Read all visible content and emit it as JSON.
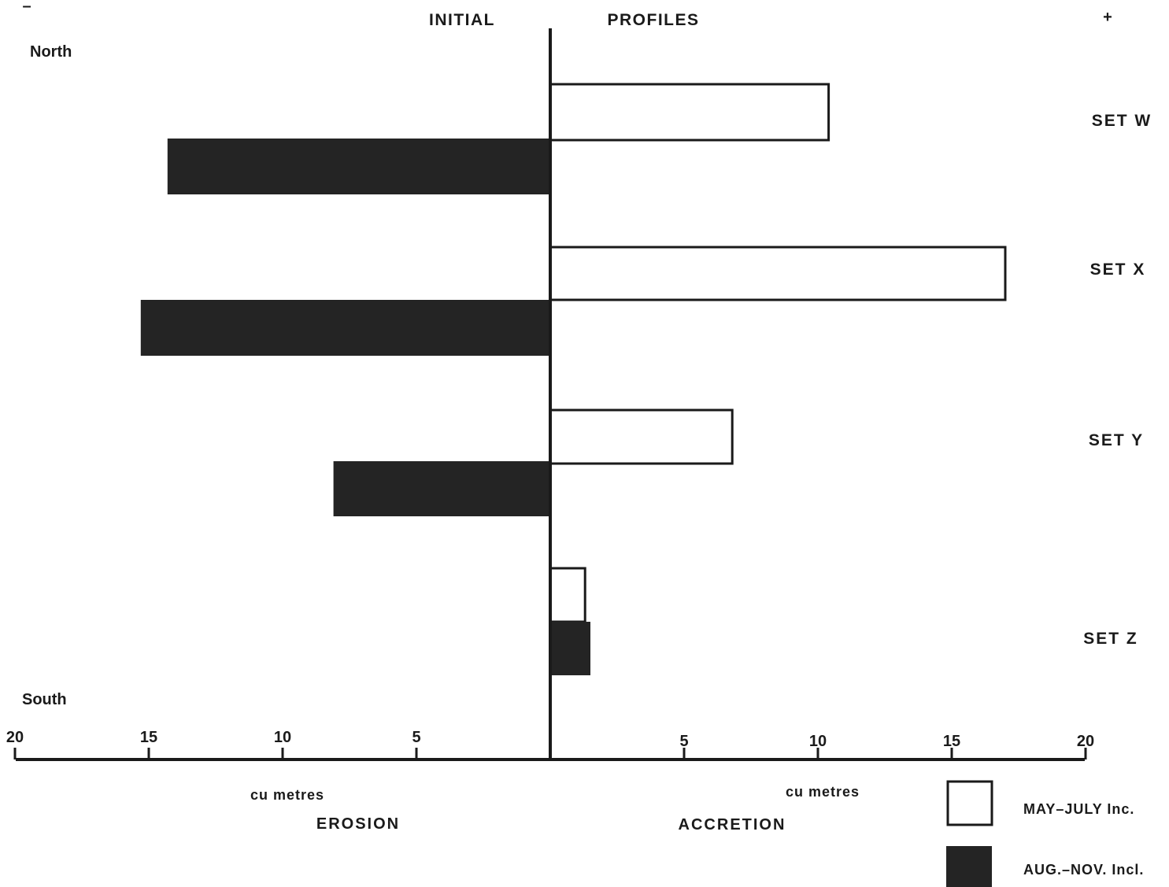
{
  "chart_data": {
    "type": "bar",
    "orientation": "horizontal",
    "sign_minus": "–",
    "sign_plus": "+",
    "top_left_label": "INITIAL",
    "top_right_label": "PROFILES",
    "north_label": "North",
    "south_label": "South",
    "categories": [
      "SET W",
      "SET X",
      "SET Y",
      "SET Z"
    ],
    "series": [
      {
        "name": "MAY–JULY Inc.",
        "fill": "#ffffff",
        "values": [
          10.4,
          17.0,
          6.8,
          1.3
        ]
      },
      {
        "name": "AUG.–NOV. Incl.",
        "fill": "#242424",
        "values": [
          -14.3,
          -15.3,
          -8.1,
          1.5
        ]
      }
    ],
    "xlim": [
      -20,
      20
    ],
    "x_ticks": [
      -20,
      -15,
      -10,
      -5,
      5,
      10,
      15,
      20
    ],
    "x_tick_labels": [
      "20",
      "15",
      "10",
      "5",
      "5",
      "10",
      "15",
      "20"
    ],
    "left_unit": "cu metres",
    "right_unit": "cu metres",
    "left_caption": "EROSION",
    "right_caption": "ACCRETION",
    "legend_position": "bottom-right",
    "grid": false
  }
}
